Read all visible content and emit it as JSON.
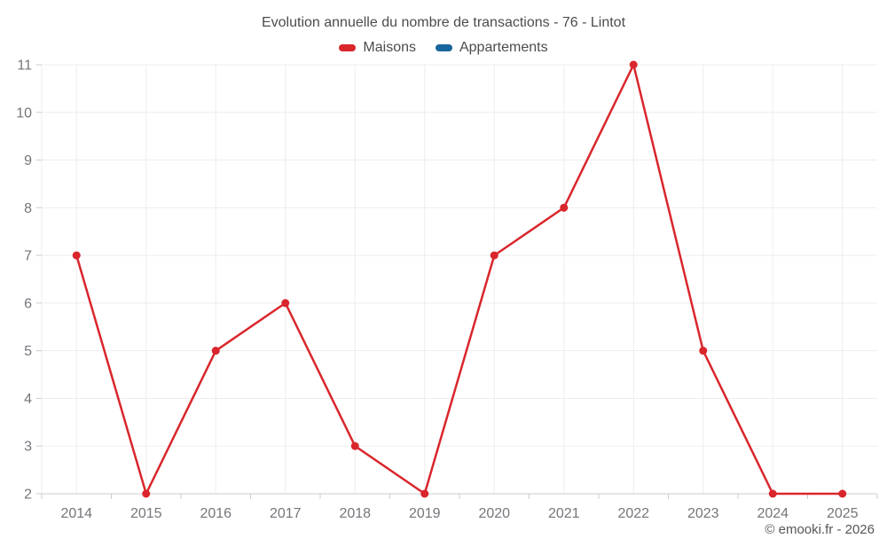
{
  "chart_data": {
    "type": "line",
    "title": "Evolution annuelle du nombre de transactions - 76 - Lintot",
    "categories": [
      "2014",
      "2015",
      "2016",
      "2017",
      "2018",
      "2019",
      "2020",
      "2021",
      "2022",
      "2023",
      "2024",
      "2025"
    ],
    "series": [
      {
        "name": "Maisons",
        "color": "#d9262c",
        "values": [
          7,
          2,
          5,
          6,
          3,
          2,
          7,
          8,
          11,
          5,
          2,
          2
        ]
      },
      {
        "name": "Appartements",
        "color": "#17669e",
        "values": []
      }
    ],
    "ylim": [
      2,
      11
    ],
    "ytick_step": 1,
    "yticks": [
      2,
      3,
      4,
      5,
      6,
      7,
      8,
      9,
      10,
      11
    ],
    "grid": true,
    "legend_position": "top",
    "style": {
      "grid_color": "#ededed",
      "axis_line_color": "#cccccc",
      "tick_color": "#cccccc",
      "axis_label_color": "#75757b",
      "marker_radius": 4.5,
      "line_width": 2.5
    }
  },
  "footer": {
    "copyright": "© emooki.fr - 2026"
  }
}
